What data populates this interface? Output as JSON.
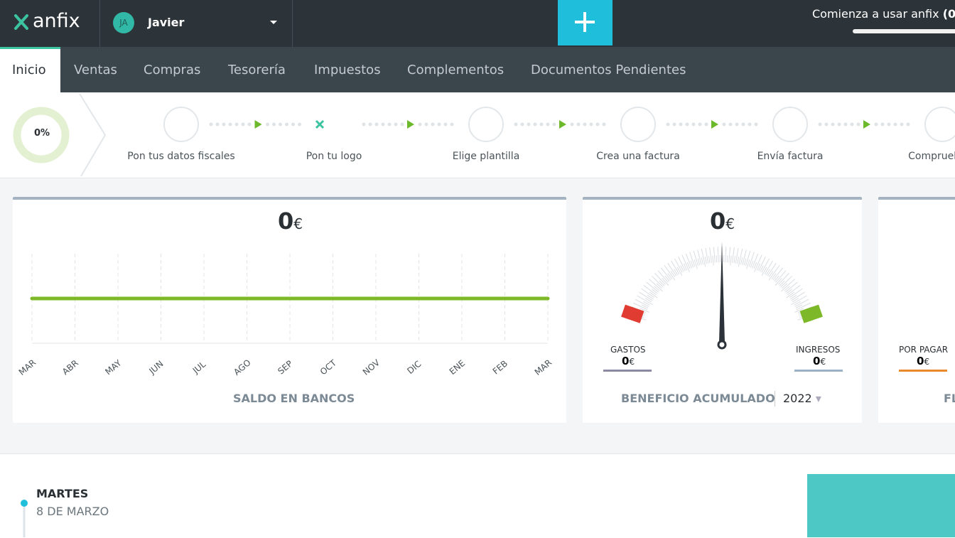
{
  "header": {
    "logo": "anfix",
    "avatar": "JA",
    "user": "Javier",
    "promo": "Comienza a usar anfix",
    "promo_count": "(0"
  },
  "nav": [
    "Inicio",
    "Ventas",
    "Compras",
    "Tesorería",
    "Impuestos",
    "Complementos",
    "Documentos Pendientes"
  ],
  "onboarding": {
    "progress": "0%",
    "steps": [
      "Pon tus datos fiscales",
      "Pon tu logo",
      "Elige plantilla",
      "Crea una factura",
      "Envía factura",
      "Comprueba R"
    ]
  },
  "saldo": {
    "amount": "0",
    "currency": "€",
    "months": [
      "MAR",
      "ABR",
      "MAY",
      "JUN",
      "JUL",
      "AGO",
      "SEP",
      "OCT",
      "NOV",
      "DIC",
      "ENE",
      "FEB",
      "MAR"
    ],
    "values": [
      0,
      0,
      0,
      0,
      0,
      0,
      0,
      0,
      0,
      0,
      0,
      0,
      0
    ],
    "label": "SALDO EN BANCOS"
  },
  "beneficio": {
    "amount": "0",
    "currency": "€",
    "gastos": {
      "label": "GASTOS",
      "amount": "0",
      "currency": "€"
    },
    "ingresos": {
      "label": "INGRESOS",
      "amount": "0",
      "currency": "€"
    },
    "label": "BENEFICIO ACUMULADO",
    "year": "2022"
  },
  "flujo": {
    "por_pagar": {
      "label": "POR PAGAR",
      "amount": "0",
      "currency": "€"
    },
    "label": "FL"
  },
  "agenda": {
    "weekday": "MARTES",
    "date": "8 DE MARZO"
  }
}
